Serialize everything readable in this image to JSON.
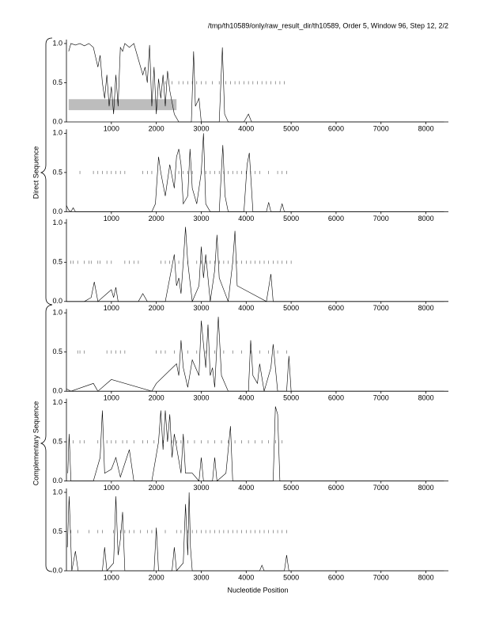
{
  "title": "/tmp/th10589/only/raw_result_dir/th10589, Order 5, Window 96, Step 12, 2/2",
  "x_label": "Nucleotide Position",
  "groups": [
    "Direct Sequence",
    "Complementary Sequence"
  ],
  "chart_data": [
    {
      "type": "line",
      "color": "#000000",
      "x": [
        50,
        100,
        200,
        300,
        400,
        500,
        600,
        700,
        750,
        800,
        850,
        900,
        950,
        1000,
        1050,
        1100,
        1150,
        1200,
        1250,
        1300,
        1400,
        1500,
        1600,
        1700,
        1750,
        1800,
        1850,
        1900,
        1950,
        2000,
        2050,
        2100,
        2150,
        2200,
        2250,
        2300,
        2350,
        2400,
        2500,
        2780,
        2830,
        2870,
        2950,
        3000,
        3400,
        3470,
        3520,
        3600,
        3950,
        4050,
        4120,
        8400
      ],
      "values": [
        0.9,
        1,
        0.98,
        1,
        0.97,
        1,
        0.95,
        0.7,
        0.85,
        0.5,
        0.3,
        0.6,
        0.2,
        0.45,
        0.1,
        0.6,
        0.2,
        0.95,
        0.9,
        1,
        0.95,
        1,
        0.8,
        0.6,
        0.7,
        0.5,
        0.98,
        0.2,
        0.7,
        0.1,
        0.55,
        0.3,
        0.6,
        0.2,
        0.65,
        0.4,
        0.25,
        0.1,
        0,
        0,
        0.9,
        0.2,
        0.3,
        0,
        0,
        0.95,
        0.1,
        0,
        0,
        0.1,
        0,
        0
      ],
      "markers": {
        "y": 0.5,
        "x": [
          2200,
          2350,
          2500,
          2600,
          2700,
          2800,
          2900,
          3000,
          3100,
          3250,
          3400,
          3550,
          3650,
          3750,
          3850,
          3950,
          4050,
          4150,
          4250,
          4350,
          4450,
          4550,
          4650,
          4750,
          4850
        ]
      },
      "band": {
        "x": [
          50,
          2450
        ],
        "y": [
          0.15,
          0.29
        ],
        "color": "#bdbdbd"
      },
      "xlim": [
        0,
        8500
      ],
      "xticks": [
        1000,
        2000,
        3000,
        4000,
        5000,
        6000,
        7000,
        8000
      ],
      "ylim": [
        0,
        1.05
      ],
      "yticks": [
        {
          "value": 0,
          "label": "0.0"
        },
        0.5,
        {
          "value": 1,
          "label": "1.0"
        }
      ]
    },
    {
      "type": "line",
      "color": "#000000",
      "x": [
        0,
        50,
        100,
        150,
        200,
        1900,
        1980,
        2050,
        2100,
        2200,
        2300,
        2400,
        2450,
        2500,
        2550,
        2600,
        2700,
        2750,
        2800,
        2900,
        3000,
        3050,
        3100,
        3200,
        3400,
        3480,
        3530,
        3600,
        3950,
        4020,
        4070,
        4150,
        4450,
        4500,
        4550,
        4750,
        4800,
        4850,
        8400
      ],
      "values": [
        0.08,
        0.02,
        0,
        0.05,
        0,
        0,
        0.1,
        0.7,
        0.5,
        0.2,
        0.6,
        0.3,
        0.7,
        0.8,
        0.6,
        0.1,
        0.2,
        0.8,
        0.3,
        0.1,
        0.5,
        1,
        0.1,
        0,
        0,
        0.85,
        0.2,
        0,
        0,
        0.6,
        0.75,
        0,
        0,
        0.12,
        0,
        0,
        0.1,
        0,
        0
      ],
      "markers": {
        "y": 0.5,
        "x": [
          300,
          600,
          700,
          800,
          900,
          1000,
          1100,
          1200,
          1300,
          1700,
          1800,
          1900,
          2500,
          2600,
          2700,
          2800,
          3000,
          3100,
          3200,
          3300,
          3400,
          3500,
          3600,
          3700,
          3800,
          3900,
          4000,
          4100,
          4200,
          4300,
          4500,
          4700,
          4800,
          4900
        ]
      },
      "xlim": [
        0,
        8500
      ],
      "xticks": [
        1000,
        2000,
        3000,
        4000,
        5000,
        6000,
        7000,
        8000
      ],
      "ylim": [
        0,
        1.05
      ],
      "yticks": [
        {
          "value": 0,
          "label": "0.0"
        },
        0.5,
        {
          "value": 1,
          "label": "1.0"
        }
      ]
    },
    {
      "type": "line",
      "color": "#000000",
      "x": [
        0,
        400,
        550,
        620,
        700,
        900,
        1000,
        1050,
        1100,
        1150,
        1600,
        1700,
        1800,
        2200,
        2300,
        2400,
        2450,
        2500,
        2550,
        2600,
        2650,
        2700,
        2800,
        2950,
        3000,
        3050,
        3100,
        3200,
        3300,
        3350,
        3400,
        3600,
        3700,
        3750,
        3800,
        4450,
        4550,
        4600,
        8400
      ],
      "values": [
        0,
        0,
        0.05,
        0.25,
        0,
        0.1,
        0.15,
        0.05,
        0.18,
        0,
        0,
        0.1,
        0,
        0,
        0.3,
        0.6,
        0.2,
        0.3,
        0.1,
        0.5,
        0.95,
        0.5,
        0,
        0.2,
        0.7,
        0.3,
        0.6,
        0,
        0.4,
        0.85,
        0.3,
        0,
        0.5,
        0.9,
        0.2,
        0,
        0.35,
        0,
        0
      ],
      "markers": {
        "y": 0.5,
        "x": [
          100,
          150,
          250,
          400,
          500,
          550,
          700,
          750,
          900,
          1000,
          1300,
          1400,
          1500,
          1600,
          2100,
          2200,
          2300,
          2500,
          2700,
          2900,
          3000,
          3100,
          3200,
          3300,
          3400,
          3500,
          3600,
          3700,
          3800,
          3900,
          4000,
          4100,
          4200,
          4300,
          4400,
          4500,
          4600,
          4700,
          4800,
          4900,
          5000
        ]
      },
      "xlim": [
        0,
        8500
      ],
      "xticks": [
        1000,
        2000,
        3000,
        4000,
        5000,
        6000,
        7000,
        8000
      ],
      "ylim": [
        0,
        1.05
      ],
      "yticks": [
        {
          "value": 0,
          "label": "0.0"
        },
        0.5,
        {
          "value": 1,
          "label": "1.0"
        }
      ]
    },
    {
      "type": "line",
      "color": "#000000",
      "x": [
        0,
        100,
        600,
        700,
        1000,
        1900,
        2000,
        2450,
        2500,
        2550,
        2600,
        2700,
        2800,
        2950,
        3000,
        3100,
        3150,
        3200,
        3250,
        3300,
        3380,
        3450,
        3600,
        4050,
        4100,
        4150,
        4250,
        4300,
        4400,
        4550,
        4600,
        4700,
        4900,
        4950,
        5000,
        8400
      ],
      "values": [
        0.03,
        0,
        0.1,
        0,
        0.15,
        0,
        0.1,
        0.35,
        0.2,
        0.65,
        0.3,
        0.05,
        0.4,
        0.2,
        0.9,
        0.3,
        0.85,
        0.2,
        0.3,
        0.05,
        0.95,
        0.2,
        0,
        0,
        0.65,
        0.2,
        0.1,
        0.35,
        0,
        0.3,
        0.6,
        0,
        0,
        0.45,
        0,
        0
      ],
      "markers": {
        "y": 0.5,
        "x": [
          250,
          300,
          400,
          900,
          1000,
          1100,
          1200,
          1300,
          2000,
          2100,
          2200,
          2400,
          2700,
          2900,
          3100,
          3300,
          3500,
          3700,
          3900,
          4100,
          4300,
          4500,
          4700,
          4900
        ]
      },
      "xlim": [
        0,
        8500
      ],
      "xticks": [
        1000,
        2000,
        3000,
        4000,
        5000,
        6000,
        7000,
        8000
      ],
      "ylim": [
        0,
        1.05
      ],
      "yticks": [
        {
          "value": 0,
          "label": "0.0"
        },
        0.5,
        {
          "value": 1,
          "label": "1.0"
        }
      ]
    },
    {
      "type": "line",
      "color": "#000000",
      "x": [
        30,
        60,
        100,
        600,
        750,
        800,
        850,
        1000,
        1100,
        1200,
        1400,
        1500,
        1900,
        2050,
        2100,
        2150,
        2200,
        2250,
        2300,
        2350,
        2400,
        2550,
        2600,
        2650,
        2800,
        2950,
        3000,
        3050,
        3250,
        3300,
        3350,
        3550,
        3650,
        3700,
        4600,
        4650,
        4700,
        4750,
        8400
      ],
      "values": [
        0.1,
        0.6,
        0,
        0,
        0.3,
        0.9,
        0.1,
        0.15,
        0.3,
        0.05,
        0.4,
        0,
        0,
        0.5,
        0.9,
        0.4,
        0.9,
        0.5,
        0.85,
        0.3,
        0.6,
        0.1,
        0.6,
        0.1,
        0.1,
        0,
        0.3,
        0,
        0,
        0.3,
        0,
        0.1,
        0.7,
        0,
        0,
        0.95,
        0.85,
        0,
        0
      ],
      "markers": {
        "y": 0.5,
        "x": [
          150,
          300,
          400,
          700,
          900,
          1000,
          1100,
          1250,
          1350,
          1500,
          1700,
          1800,
          1950,
          2150,
          2350,
          2450,
          2550,
          2700,
          2850,
          3000,
          3150,
          3300,
          3450,
          3600,
          3750,
          3900,
          4050,
          4200,
          4350,
          4500,
          4650,
          4800
        ]
      },
      "xlim": [
        0,
        8500
      ],
      "xticks": [
        1000,
        2000,
        3000,
        4000,
        5000,
        6000,
        7000,
        8000
      ],
      "ylim": [
        0,
        1.05
      ],
      "yticks": [
        {
          "value": 0,
          "label": "0.0"
        },
        0.5,
        {
          "value": 1,
          "label": "1.0"
        }
      ]
    },
    {
      "type": "line",
      "color": "#000000",
      "x": [
        20,
        60,
        120,
        200,
        260,
        800,
        850,
        900,
        1050,
        1100,
        1150,
        1200,
        1250,
        1300,
        1950,
        2000,
        2050,
        2350,
        2400,
        2450,
        2600,
        2650,
        2700,
        2730,
        2760,
        2800,
        4300,
        4350,
        4400,
        4850,
        4900,
        4950,
        8400
      ],
      "values": [
        0.3,
        0.95,
        0,
        0.25,
        0,
        0,
        0.3,
        0,
        0.1,
        0.95,
        0.2,
        0.4,
        0.75,
        0,
        0,
        0.55,
        0,
        0,
        0.3,
        0,
        0.1,
        0.85,
        0.2,
        1,
        0.3,
        0,
        0,
        0.07,
        0,
        0,
        0.2,
        0,
        0
      ],
      "markers": {
        "y": 0.5,
        "x": [
          100,
          250,
          500,
          700,
          800,
          1050,
          1200,
          1300,
          1400,
          1500,
          1650,
          1800,
          1900,
          2000,
          2200,
          2450,
          2550,
          2700,
          2800,
          2900,
          3000,
          3100,
          3200,
          3300,
          3400,
          3500,
          3600,
          3700,
          3800,
          3900,
          4000,
          4100,
          4200,
          4300,
          4400,
          4500,
          4600,
          4700,
          4800,
          4900
        ]
      },
      "xlim": [
        0,
        8500
      ],
      "xticks": [
        1000,
        2000,
        3000,
        4000,
        5000,
        6000,
        7000,
        8000
      ],
      "ylim": [
        0,
        1.05
      ],
      "yticks": [
        {
          "value": 0,
          "label": "0.0"
        },
        0.5,
        {
          "value": 1,
          "label": "1.0"
        }
      ]
    }
  ]
}
